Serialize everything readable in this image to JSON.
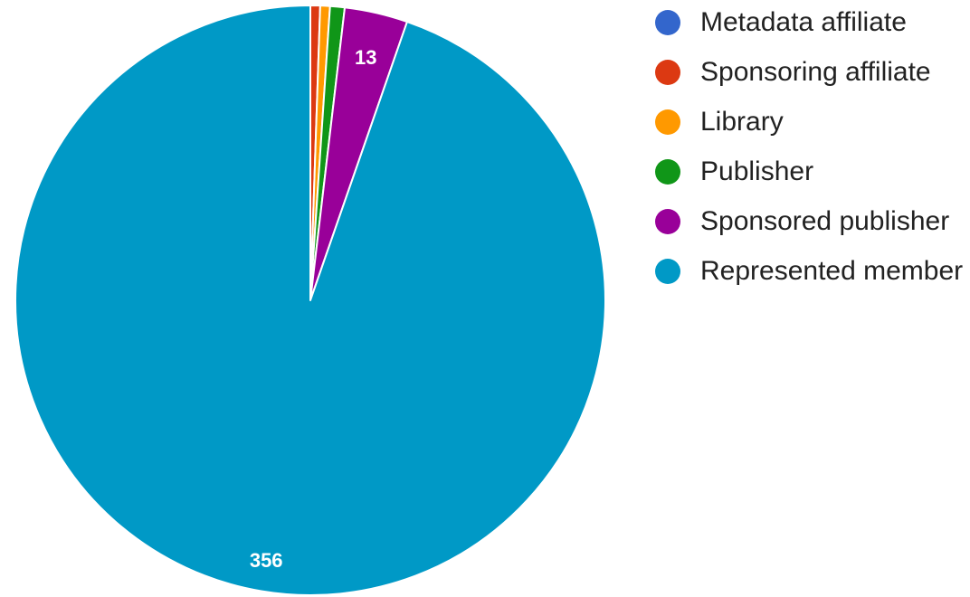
{
  "chart_data": {
    "type": "pie",
    "title": "",
    "legend_position": "right",
    "slices": [
      {
        "label": "Metadata affiliate",
        "value": 0,
        "color": "#3366cc",
        "value_label": ""
      },
      {
        "label": "Sponsoring affiliate",
        "value": 2,
        "color": "#dc3912",
        "value_label": ""
      },
      {
        "label": "Library",
        "value": 2,
        "color": "#ff9900",
        "value_label": ""
      },
      {
        "label": "Publisher",
        "value": 3,
        "color": "#109618",
        "value_label": ""
      },
      {
        "label": "Sponsored publisher",
        "value": 13,
        "color": "#990099",
        "value_label": "13"
      },
      {
        "label": "Represented member",
        "value": 356,
        "color": "#0099c6",
        "value_label": "356"
      }
    ]
  }
}
